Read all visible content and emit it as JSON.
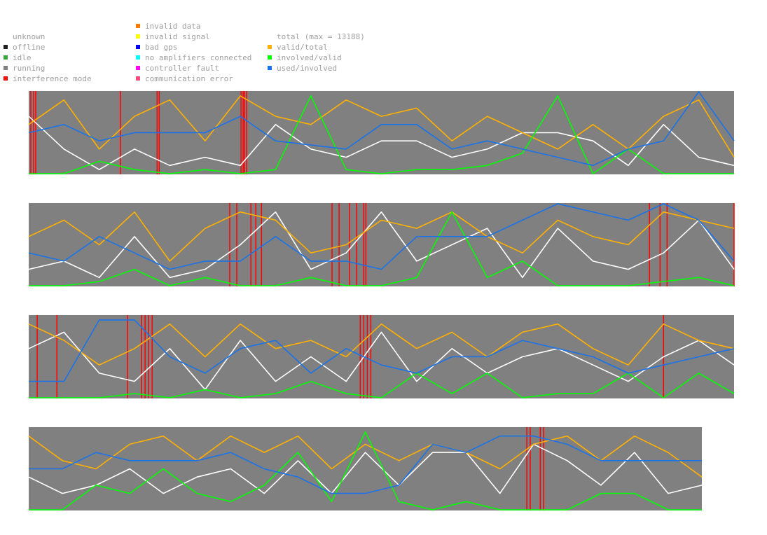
{
  "legend": {
    "status": [
      {
        "label": "unknown",
        "color": "#ffffff"
      },
      {
        "label": "offline",
        "color": "#202020"
      },
      {
        "label": "idle",
        "color": "#3aa53a"
      },
      {
        "label": "running",
        "color": "#808080"
      },
      {
        "label": "interference mode",
        "color": "#ff0000"
      }
    ],
    "faults": [
      {
        "label": "invalid data",
        "color": "#ff7a00"
      },
      {
        "label": "invalid signal",
        "color": "#ffff00"
      },
      {
        "label": "bad gps",
        "color": "#0000ff"
      },
      {
        "label": "no amplifiers connected",
        "color": "#00ffff"
      },
      {
        "label": "controller fault",
        "color": "#ff00ff"
      },
      {
        "label": "communication error",
        "color": "#ff4d7a"
      }
    ],
    "ratios": [
      {
        "label": "total (max = 13188)",
        "color": null
      },
      {
        "label": "valid/total",
        "color": "#ffb000"
      },
      {
        "label": "involved/valid",
        "color": "#00ff00"
      },
      {
        "label": "used/involved",
        "color": "#1a73e8"
      }
    ]
  },
  "chart_data": [
    {
      "type": "line",
      "panel": 1,
      "background_status": "running",
      "interference_marks": [
        0.003,
        0.007,
        0.01,
        0.13,
        0.182,
        0.185,
        0.301,
        0.304,
        0.306,
        0.309
      ],
      "series": [
        {
          "name": "total",
          "color": "#ffffff",
          "x": [
            0,
            0.05,
            0.1,
            0.15,
            0.2,
            0.25,
            0.3,
            0.35,
            0.4,
            0.45,
            0.5,
            0.55,
            0.6,
            0.65,
            0.7,
            0.75,
            0.8,
            0.85,
            0.9,
            0.95,
            1
          ],
          "values": [
            0.7,
            0.3,
            0.05,
            0.3,
            0.1,
            0.2,
            0.1,
            0.6,
            0.3,
            0.2,
            0.4,
            0.4,
            0.2,
            0.3,
            0.5,
            0.5,
            0.4,
            0.1,
            0.6,
            0.2,
            0.1
          ]
        },
        {
          "name": "valid/total",
          "color": "#ffb000",
          "x": [
            0,
            0.05,
            0.1,
            0.15,
            0.2,
            0.25,
            0.3,
            0.35,
            0.4,
            0.45,
            0.5,
            0.55,
            0.6,
            0.65,
            0.7,
            0.75,
            0.8,
            0.85,
            0.9,
            0.95,
            1
          ],
          "values": [
            0.6,
            0.9,
            0.3,
            0.7,
            0.9,
            0.4,
            0.95,
            0.7,
            0.6,
            0.9,
            0.7,
            0.8,
            0.4,
            0.7,
            0.5,
            0.3,
            0.6,
            0.3,
            0.7,
            0.9,
            0.2
          ]
        },
        {
          "name": "involved/valid",
          "color": "#00ff00",
          "x": [
            0,
            0.05,
            0.1,
            0.15,
            0.2,
            0.25,
            0.3,
            0.35,
            0.4,
            0.45,
            0.5,
            0.55,
            0.6,
            0.65,
            0.7,
            0.75,
            0.8,
            0.85,
            0.9,
            0.95,
            1
          ],
          "values": [
            0,
            0,
            0.15,
            0.05,
            0,
            0.05,
            0,
            0.05,
            0.95,
            0.05,
            0,
            0.05,
            0.05,
            0.1,
            0.25,
            0.95,
            0,
            0.3,
            0,
            0,
            0
          ]
        },
        {
          "name": "used/involved",
          "color": "#1a73e8",
          "x": [
            0,
            0.05,
            0.1,
            0.15,
            0.2,
            0.25,
            0.3,
            0.35,
            0.4,
            0.45,
            0.5,
            0.55,
            0.6,
            0.65,
            0.7,
            0.75,
            0.8,
            0.85,
            0.9,
            0.95,
            1
          ],
          "values": [
            0.5,
            0.6,
            0.4,
            0.5,
            0.5,
            0.5,
            0.7,
            0.4,
            0.35,
            0.3,
            0.6,
            0.6,
            0.3,
            0.4,
            0.3,
            0.2,
            0.1,
            0.3,
            0.4,
            1,
            0.4
          ]
        }
      ]
    },
    {
      "type": "line",
      "panel": 2,
      "background_status": "running",
      "interference_marks": [
        0.285,
        0.295,
        0.315,
        0.322,
        0.33,
        0.43,
        0.44,
        0.455,
        0.465,
        0.475,
        0.478,
        0.88,
        0.895,
        0.905,
        1.0
      ],
      "series": [
        {
          "name": "total",
          "color": "#ffffff",
          "x": [
            0,
            0.05,
            0.1,
            0.15,
            0.2,
            0.25,
            0.3,
            0.35,
            0.4,
            0.45,
            0.5,
            0.55,
            0.6,
            0.65,
            0.7,
            0.75,
            0.8,
            0.85,
            0.9,
            0.95,
            1
          ],
          "values": [
            0.2,
            0.3,
            0.1,
            0.6,
            0.1,
            0.2,
            0.5,
            0.9,
            0.2,
            0.4,
            0.9,
            0.3,
            0.5,
            0.7,
            0.1,
            0.7,
            0.3,
            0.2,
            0.4,
            0.8,
            0.2
          ]
        },
        {
          "name": "valid/total",
          "color": "#ffb000",
          "x": [
            0,
            0.05,
            0.1,
            0.15,
            0.2,
            0.25,
            0.3,
            0.35,
            0.4,
            0.45,
            0.5,
            0.55,
            0.6,
            0.65,
            0.7,
            0.75,
            0.8,
            0.85,
            0.9,
            0.95,
            1
          ],
          "values": [
            0.6,
            0.8,
            0.5,
            0.9,
            0.3,
            0.7,
            0.9,
            0.8,
            0.4,
            0.5,
            0.8,
            0.7,
            0.9,
            0.6,
            0.4,
            0.8,
            0.6,
            0.5,
            0.9,
            0.8,
            0.7
          ]
        },
        {
          "name": "involved/valid",
          "color": "#00ff00",
          "x": [
            0,
            0.05,
            0.1,
            0.15,
            0.2,
            0.25,
            0.3,
            0.35,
            0.4,
            0.45,
            0.5,
            0.55,
            0.6,
            0.65,
            0.7,
            0.75,
            0.8,
            0.85,
            0.9,
            0.95,
            1
          ],
          "values": [
            0,
            0,
            0.05,
            0.2,
            0,
            0.1,
            0,
            0,
            0.1,
            0,
            0,
            0.1,
            0.9,
            0.1,
            0.3,
            0,
            0,
            0,
            0.05,
            0.1,
            0
          ]
        },
        {
          "name": "used/involved",
          "color": "#1a73e8",
          "x": [
            0,
            0.05,
            0.1,
            0.15,
            0.2,
            0.25,
            0.3,
            0.35,
            0.4,
            0.45,
            0.5,
            0.55,
            0.6,
            0.65,
            0.7,
            0.75,
            0.8,
            0.85,
            0.9,
            0.95,
            1
          ],
          "values": [
            0.4,
            0.3,
            0.6,
            0.4,
            0.2,
            0.3,
            0.3,
            0.6,
            0.3,
            0.3,
            0.2,
            0.6,
            0.6,
            0.6,
            0.8,
            1,
            0.9,
            0.8,
            1,
            0.8,
            0.3
          ]
        }
      ]
    },
    {
      "type": "line",
      "panel": 3,
      "background_status": "running",
      "interference_marks": [
        0.012,
        0.04,
        0.14,
        0.16,
        0.165,
        0.17,
        0.175,
        0.47,
        0.475,
        0.48,
        0.485,
        0.9
      ],
      "series": [
        {
          "name": "total",
          "color": "#ffffff",
          "x": [
            0,
            0.05,
            0.1,
            0.15,
            0.2,
            0.25,
            0.3,
            0.35,
            0.4,
            0.45,
            0.5,
            0.55,
            0.6,
            0.65,
            0.7,
            0.75,
            0.8,
            0.85,
            0.9,
            0.95,
            1
          ],
          "values": [
            0.6,
            0.8,
            0.3,
            0.2,
            0.6,
            0.1,
            0.7,
            0.2,
            0.5,
            0.2,
            0.8,
            0.2,
            0.6,
            0.3,
            0.5,
            0.6,
            0.4,
            0.2,
            0.5,
            0.7,
            0.4
          ]
        },
        {
          "name": "valid/total",
          "color": "#ffb000",
          "x": [
            0,
            0.05,
            0.1,
            0.15,
            0.2,
            0.25,
            0.3,
            0.35,
            0.4,
            0.45,
            0.5,
            0.55,
            0.6,
            0.65,
            0.7,
            0.75,
            0.8,
            0.85,
            0.9,
            0.95,
            1
          ],
          "values": [
            0.9,
            0.7,
            0.4,
            0.6,
            0.9,
            0.5,
            0.9,
            0.6,
            0.7,
            0.5,
            0.9,
            0.6,
            0.8,
            0.5,
            0.8,
            0.9,
            0.6,
            0.4,
            0.9,
            0.7,
            0.6
          ]
        },
        {
          "name": "involved/valid",
          "color": "#00ff00",
          "x": [
            0,
            0.05,
            0.1,
            0.15,
            0.2,
            0.25,
            0.3,
            0.35,
            0.4,
            0.45,
            0.5,
            0.55,
            0.6,
            0.65,
            0.7,
            0.75,
            0.8,
            0.85,
            0.9,
            0.95,
            1
          ],
          "values": [
            0,
            0,
            0,
            0.05,
            0,
            0.1,
            0,
            0.05,
            0.2,
            0.05,
            0,
            0.3,
            0.05,
            0.3,
            0,
            0.05,
            0.05,
            0.3,
            0,
            0.3,
            0.05
          ]
        },
        {
          "name": "used/involved",
          "color": "#1a73e8",
          "x": [
            0,
            0.05,
            0.1,
            0.15,
            0.2,
            0.25,
            0.3,
            0.35,
            0.4,
            0.45,
            0.5,
            0.55,
            0.6,
            0.65,
            0.7,
            0.75,
            0.8,
            0.85,
            0.9,
            0.95,
            1
          ],
          "values": [
            0.2,
            0.2,
            0.95,
            0.95,
            0.5,
            0.3,
            0.6,
            0.7,
            0.3,
            0.6,
            0.4,
            0.3,
            0.5,
            0.5,
            0.7,
            0.6,
            0.5,
            0.3,
            0.4,
            0.5,
            0.6
          ]
        }
      ]
    },
    {
      "type": "line",
      "panel": 4,
      "background_status": "running",
      "interference_marks": [
        0.74,
        0.745,
        0.76,
        0.765
      ],
      "series": [
        {
          "name": "total",
          "color": "#ffffff",
          "x": [
            0,
            0.05,
            0.1,
            0.15,
            0.2,
            0.25,
            0.3,
            0.35,
            0.4,
            0.45,
            0.5,
            0.55,
            0.6,
            0.65,
            0.7,
            0.75,
            0.8,
            0.85,
            0.9,
            0.95,
            1
          ],
          "values": [
            0.4,
            0.2,
            0.3,
            0.5,
            0.2,
            0.4,
            0.5,
            0.2,
            0.6,
            0.2,
            0.7,
            0.3,
            0.7,
            0.7,
            0.2,
            0.8,
            0.6,
            0.3,
            0.7,
            0.2,
            0.3
          ]
        },
        {
          "name": "valid/total",
          "color": "#ffb000",
          "x": [
            0,
            0.05,
            0.1,
            0.15,
            0.2,
            0.25,
            0.3,
            0.35,
            0.4,
            0.45,
            0.5,
            0.55,
            0.6,
            0.65,
            0.7,
            0.75,
            0.8,
            0.85,
            0.9,
            0.95,
            1
          ],
          "values": [
            0.9,
            0.6,
            0.5,
            0.8,
            0.9,
            0.6,
            0.9,
            0.7,
            0.9,
            0.5,
            0.8,
            0.6,
            0.8,
            0.7,
            0.5,
            0.8,
            0.9,
            0.6,
            0.9,
            0.7,
            0.4
          ]
        },
        {
          "name": "involved/valid",
          "color": "#00ff00",
          "x": [
            0,
            0.05,
            0.1,
            0.15,
            0.2,
            0.25,
            0.3,
            0.35,
            0.4,
            0.45,
            0.5,
            0.55,
            0.6,
            0.65,
            0.7,
            0.75,
            0.8,
            0.85,
            0.9,
            0.95,
            1
          ],
          "values": [
            0,
            0,
            0.3,
            0.2,
            0.5,
            0.2,
            0.1,
            0.3,
            0.7,
            0.1,
            0.95,
            0.1,
            0,
            0.1,
            0,
            0,
            0,
            0.2,
            0.2,
            0,
            0
          ]
        },
        {
          "name": "used/involved",
          "color": "#1a73e8",
          "x": [
            0,
            0.05,
            0.1,
            0.15,
            0.2,
            0.25,
            0.3,
            0.35,
            0.4,
            0.45,
            0.5,
            0.55,
            0.6,
            0.65,
            0.7,
            0.75,
            0.8,
            0.85,
            0.9,
            0.95,
            1
          ],
          "values": [
            0.5,
            0.5,
            0.7,
            0.6,
            0.6,
            0.6,
            0.7,
            0.5,
            0.4,
            0.2,
            0.2,
            0.3,
            0.8,
            0.7,
            0.9,
            0.9,
            0.8,
            0.6,
            0.6,
            0.6,
            0.6
          ]
        }
      ]
    }
  ]
}
